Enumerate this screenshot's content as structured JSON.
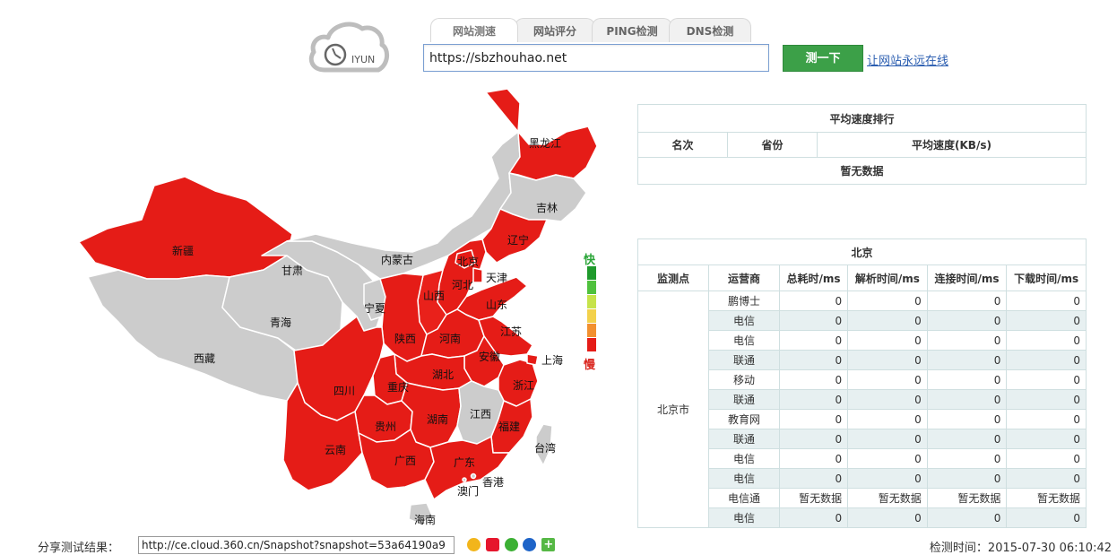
{
  "logo": {
    "text": "IYUN",
    "icon": "cloud-clock-logo"
  },
  "tabs": [
    {
      "label": "网站测速",
      "active": true
    },
    {
      "label": "网站评分",
      "active": false
    },
    {
      "label": "PING检测",
      "active": false
    },
    {
      "label": "DNS检测",
      "active": false
    }
  ],
  "search": {
    "value": "https://sbzhouhao.net"
  },
  "test_button": "测一下",
  "online_link": "让网站永远在线",
  "map": {
    "provinces": {
      "heilongjiang": "黑龙江",
      "jilin": "吉林",
      "liaoning": "辽宁",
      "neimenggu": "内蒙古",
      "beijing": "北京",
      "tianjin": "天津",
      "hebei": "河北",
      "shanxi": "山西",
      "shandong": "山东",
      "xinjiang": "新疆",
      "gansu": "甘肃",
      "ningxia": "宁夏",
      "qinghai": "青海",
      "xizang": "西藏",
      "shaanxi": "陕西",
      "henan": "河南",
      "jiangsu": "江苏",
      "shanghai": "上海",
      "anhui": "安徽",
      "hubei": "湖北",
      "sichuan": "四川",
      "chongqing": "重庆",
      "zhejiang": "浙江",
      "guizhou": "贵州",
      "hunan": "湖南",
      "jiangxi": "江西",
      "fujian": "福建",
      "taiwan": "台湾",
      "yunnan": "云南",
      "guangxi": "广西",
      "guangdong": "广东",
      "xianggang": "香港",
      "aomen": "澳门",
      "hainan": "海南"
    },
    "colors": {
      "slow": "#e51c17",
      "none": "#cccccc",
      "border": "#ffffff"
    }
  },
  "legend": {
    "fast": "快",
    "slow": "慢",
    "colors": [
      "#1f9a2c",
      "#4fc13d",
      "#c6e34a",
      "#f3d14b",
      "#f2902f",
      "#e51c17"
    ]
  },
  "rank_table": {
    "title": "平均速度排行",
    "headers": [
      "名次",
      "省份",
      "平均速度(KB/s)"
    ],
    "empty": "暂无数据"
  },
  "city_table": {
    "title": "北京",
    "headers": [
      "监测点",
      "运营商",
      "总耗时/ms",
      "解析时间/ms",
      "连接时间/ms",
      "下载时间/ms"
    ],
    "site": "北京市",
    "rows": [
      {
        "isp": "鹏博士",
        "total": "0",
        "dns": "0",
        "connect": "0",
        "download": "0"
      },
      {
        "isp": "电信",
        "total": "0",
        "dns": "0",
        "connect": "0",
        "download": "0"
      },
      {
        "isp": "电信",
        "total": "0",
        "dns": "0",
        "connect": "0",
        "download": "0"
      },
      {
        "isp": "联通",
        "total": "0",
        "dns": "0",
        "connect": "0",
        "download": "0"
      },
      {
        "isp": "移动",
        "total": "0",
        "dns": "0",
        "connect": "0",
        "download": "0"
      },
      {
        "isp": "联通",
        "total": "0",
        "dns": "0",
        "connect": "0",
        "download": "0"
      },
      {
        "isp": "教育网",
        "total": "0",
        "dns": "0",
        "connect": "0",
        "download": "0"
      },
      {
        "isp": "联通",
        "total": "0",
        "dns": "0",
        "connect": "0",
        "download": "0"
      },
      {
        "isp": "电信",
        "total": "0",
        "dns": "0",
        "connect": "0",
        "download": "0"
      },
      {
        "isp": "电信",
        "total": "0",
        "dns": "0",
        "connect": "0",
        "download": "0"
      },
      {
        "isp": "电信通",
        "total": "暂无数据",
        "dns": "暂无数据",
        "connect": "暂无数据",
        "download": "暂无数据"
      },
      {
        "isp": "电信",
        "total": "0",
        "dns": "0",
        "connect": "0",
        "download": "0"
      }
    ]
  },
  "share": {
    "label": "分享测试结果：",
    "value": "http://ce.cloud.360.cn/Snapshot?snapshot=53a64190a9",
    "icons": [
      "qzone-icon",
      "weibo-icon",
      "wechat-icon",
      "renren-icon",
      "more-plus-icon"
    ]
  },
  "detect_time": "检测时间：2015-07-30 06:10:42"
}
